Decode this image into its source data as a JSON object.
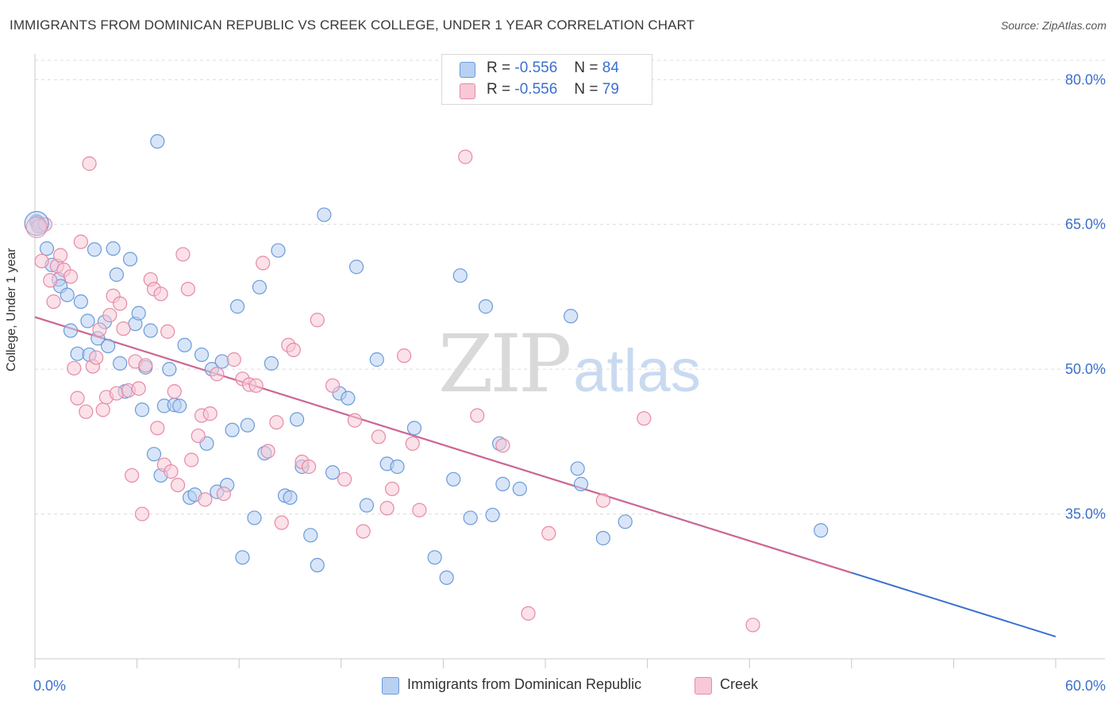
{
  "title": "IMMIGRANTS FROM DOMINICAN REPUBLIC VS CREEK COLLEGE, UNDER 1 YEAR CORRELATION CHART",
  "source": "Source: ZipAtlas.com",
  "watermark": {
    "zip": "ZIP",
    "atlas": "atlas"
  },
  "legend": {
    "r_label": "R =",
    "n_label": "N =",
    "series": [
      {
        "name": "Immigrants from Dominican Republic",
        "r": "-0.556",
        "n": "84",
        "fill": "#b8d0f2",
        "stroke": "#6a9bd8"
      },
      {
        "name": "Creek",
        "r": "-0.556",
        "n": "79",
        "fill": "#f8c8d6",
        "stroke": "#e58aa6"
      }
    ]
  },
  "chart_data": {
    "type": "scatter",
    "title": "IMMIGRANTS FROM DOMINICAN REPUBLIC VS CREEK COLLEGE, UNDER 1 YEAR CORRELATION CHART",
    "xlabel": "",
    "ylabel": "College, Under 1 year",
    "xlim": [
      0,
      60
    ],
    "ylim": [
      20,
      82
    ],
    "x_tick_labels": [
      "0.0%",
      "60.0%"
    ],
    "y_ticks": [
      35,
      50,
      65,
      80
    ],
    "y_tick_labels": [
      "35.0%",
      "50.0%",
      "65.0%",
      "80.0%"
    ],
    "grid": true,
    "colors": {
      "blue_point": "#6a9bd8",
      "blue_fill": "#b8d0f2",
      "pink_point": "#e58aa6",
      "pink_fill": "#f8c8d6",
      "blue_line": "#3b6fd0",
      "pink_line": "#d9648c",
      "tick_label": "#3b6fd0"
    },
    "series": [
      {
        "name": "Immigrants from Dominican Republic",
        "trend": {
          "x": [
            0,
            60
          ],
          "y": [
            55.4,
            22.3
          ]
        },
        "points": [
          [
            0.2,
            65.2
          ],
          [
            0.7,
            62.5
          ],
          [
            1.0,
            60.8
          ],
          [
            1.4,
            59.3
          ],
          [
            1.5,
            58.6
          ],
          [
            1.9,
            57.7
          ],
          [
            2.1,
            54.0
          ],
          [
            2.5,
            51.6
          ],
          [
            2.7,
            57.0
          ],
          [
            3.1,
            55.0
          ],
          [
            3.2,
            51.5
          ],
          [
            3.5,
            62.4
          ],
          [
            3.7,
            53.2
          ],
          [
            4.1,
            54.9
          ],
          [
            4.3,
            52.4
          ],
          [
            4.6,
            62.5
          ],
          [
            4.8,
            59.8
          ],
          [
            5.0,
            50.6
          ],
          [
            5.3,
            47.7
          ],
          [
            5.6,
            61.4
          ],
          [
            5.9,
            54.7
          ],
          [
            6.1,
            55.8
          ],
          [
            6.3,
            45.8
          ],
          [
            6.5,
            50.2
          ],
          [
            6.8,
            54.0
          ],
          [
            7.0,
            41.2
          ],
          [
            7.2,
            73.6
          ],
          [
            7.4,
            39.0
          ],
          [
            7.6,
            46.2
          ],
          [
            7.9,
            50.0
          ],
          [
            8.2,
            46.3
          ],
          [
            8.5,
            46.2
          ],
          [
            8.8,
            52.5
          ],
          [
            9.1,
            36.7
          ],
          [
            9.4,
            37.0
          ],
          [
            9.8,
            51.5
          ],
          [
            10.1,
            42.3
          ],
          [
            10.4,
            50.0
          ],
          [
            10.7,
            37.3
          ],
          [
            11.0,
            50.8
          ],
          [
            11.3,
            38.0
          ],
          [
            11.6,
            43.7
          ],
          [
            11.9,
            56.5
          ],
          [
            12.2,
            30.5
          ],
          [
            12.5,
            44.2
          ],
          [
            12.9,
            34.6
          ],
          [
            13.2,
            58.5
          ],
          [
            13.5,
            41.3
          ],
          [
            13.9,
            50.6
          ],
          [
            14.3,
            62.3
          ],
          [
            14.7,
            36.9
          ],
          [
            15.0,
            36.7
          ],
          [
            15.4,
            44.8
          ],
          [
            15.7,
            39.9
          ],
          [
            16.2,
            32.8
          ],
          [
            16.6,
            29.7
          ],
          [
            17.0,
            66.0
          ],
          [
            17.5,
            39.3
          ],
          [
            17.9,
            47.5
          ],
          [
            18.4,
            47.0
          ],
          [
            18.9,
            60.6
          ],
          [
            19.5,
            35.9
          ],
          [
            20.1,
            51.0
          ],
          [
            20.7,
            40.2
          ],
          [
            21.3,
            39.9
          ],
          [
            22.3,
            43.9
          ],
          [
            23.5,
            30.5
          ],
          [
            24.2,
            28.4
          ],
          [
            24.6,
            38.6
          ],
          [
            25.0,
            59.7
          ],
          [
            25.6,
            34.6
          ],
          [
            26.5,
            56.5
          ],
          [
            26.9,
            34.9
          ],
          [
            27.3,
            42.3
          ],
          [
            27.5,
            38.1
          ],
          [
            28.5,
            37.6
          ],
          [
            31.5,
            55.5
          ],
          [
            31.9,
            39.7
          ],
          [
            32.1,
            38.1
          ],
          [
            33.4,
            32.5
          ],
          [
            34.7,
            34.2
          ],
          [
            46.2,
            33.3
          ],
          [
            0.1,
            65.3
          ],
          [
            0.3,
            64.9
          ]
        ]
      },
      {
        "name": "Creek",
        "trend": {
          "x": [
            0,
            48
          ],
          "y": [
            55.4,
            28.9
          ]
        },
        "points": [
          [
            0.2,
            64.8
          ],
          [
            0.4,
            61.2
          ],
          [
            0.9,
            59.2
          ],
          [
            1.1,
            57.0
          ],
          [
            1.3,
            60.7
          ],
          [
            1.5,
            61.8
          ],
          [
            1.7,
            60.3
          ],
          [
            2.1,
            59.6
          ],
          [
            2.3,
            50.1
          ],
          [
            2.5,
            47.0
          ],
          [
            2.7,
            63.2
          ],
          [
            3.0,
            45.6
          ],
          [
            3.2,
            71.3
          ],
          [
            3.4,
            50.3
          ],
          [
            3.6,
            51.2
          ],
          [
            3.8,
            54.1
          ],
          [
            4.0,
            45.8
          ],
          [
            4.2,
            47.1
          ],
          [
            4.4,
            55.6
          ],
          [
            4.6,
            57.6
          ],
          [
            4.8,
            47.5
          ],
          [
            5.0,
            56.8
          ],
          [
            5.2,
            54.2
          ],
          [
            5.5,
            47.8
          ],
          [
            5.7,
            39.0
          ],
          [
            5.9,
            50.8
          ],
          [
            6.1,
            48.0
          ],
          [
            6.3,
            35.0
          ],
          [
            6.5,
            50.4
          ],
          [
            6.8,
            59.3
          ],
          [
            7.0,
            58.3
          ],
          [
            7.2,
            43.9
          ],
          [
            7.4,
            57.8
          ],
          [
            7.6,
            40.1
          ],
          [
            7.8,
            53.9
          ],
          [
            8.0,
            39.4
          ],
          [
            8.2,
            47.7
          ],
          [
            8.4,
            38.0
          ],
          [
            8.7,
            61.9
          ],
          [
            9.0,
            58.3
          ],
          [
            9.2,
            40.6
          ],
          [
            9.6,
            43.1
          ],
          [
            9.8,
            45.2
          ],
          [
            10.0,
            36.5
          ],
          [
            10.3,
            45.4
          ],
          [
            10.7,
            49.5
          ],
          [
            11.1,
            37.1
          ],
          [
            11.7,
            51.0
          ],
          [
            12.2,
            49.0
          ],
          [
            12.6,
            48.4
          ],
          [
            13.0,
            48.3
          ],
          [
            13.4,
            61.0
          ],
          [
            13.7,
            41.5
          ],
          [
            14.2,
            44.5
          ],
          [
            14.5,
            34.1
          ],
          [
            14.9,
            52.5
          ],
          [
            15.2,
            52.0
          ],
          [
            15.7,
            40.4
          ],
          [
            16.1,
            39.9
          ],
          [
            16.6,
            55.1
          ],
          [
            17.5,
            48.3
          ],
          [
            18.2,
            38.6
          ],
          [
            18.8,
            44.7
          ],
          [
            19.3,
            33.2
          ],
          [
            20.2,
            43.0
          ],
          [
            20.7,
            35.6
          ],
          [
            21.0,
            37.6
          ],
          [
            21.7,
            51.4
          ],
          [
            22.2,
            42.3
          ],
          [
            22.6,
            35.4
          ],
          [
            25.3,
            72.0
          ],
          [
            26.0,
            45.2
          ],
          [
            27.5,
            42.1
          ],
          [
            29.0,
            24.7
          ],
          [
            30.2,
            33.0
          ],
          [
            33.4,
            36.4
          ],
          [
            35.8,
            44.9
          ],
          [
            42.2,
            23.5
          ],
          [
            0.6,
            65.0
          ]
        ]
      }
    ]
  }
}
